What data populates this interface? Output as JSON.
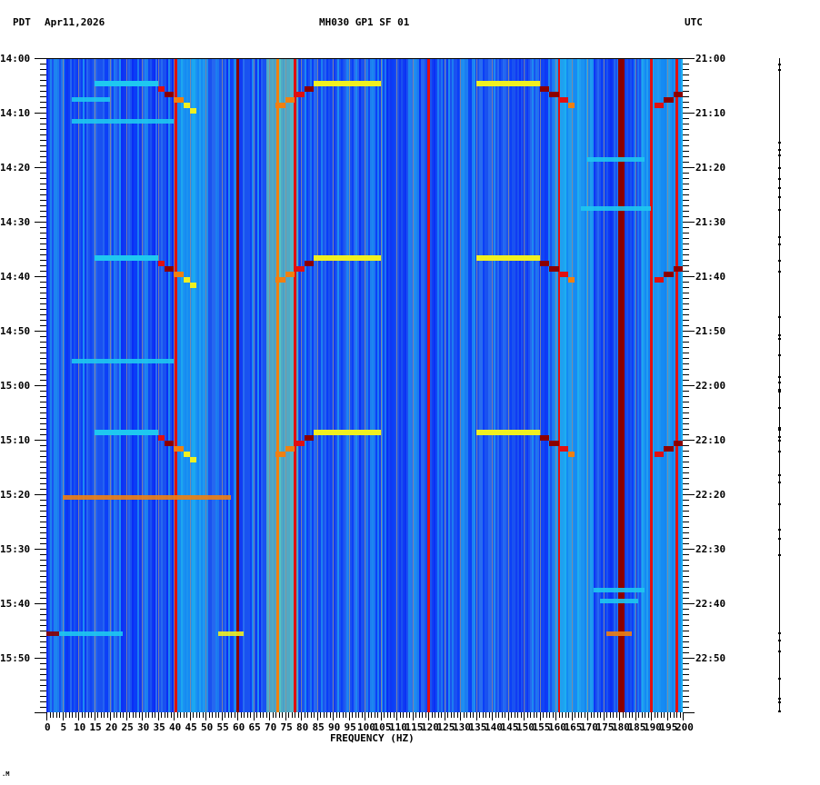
{
  "header": {
    "left_tz": "PDT",
    "date": "Apr11,2026",
    "station": "MH030 GP1 SF 01",
    "right_tz": "UTC"
  },
  "colors": {
    "background": "#1a52f0",
    "dark_blue": "#0a2cf5",
    "cyan": "#1ec8f0",
    "light_green": "#80f0a0",
    "yellow": "#f0f020",
    "orange": "#f08010",
    "red": "#e01010",
    "dark_red": "#8c0000",
    "grid": "#8a8a9a"
  },
  "footer_mark": ".M",
  "chart_data": {
    "type": "heatmap",
    "title": "MH030 GP1 SF 01",
    "xlabel": "FREQUENCY (HZ)",
    "ylabel_left": "PDT",
    "ylabel_right": "UTC",
    "xlim": [
      0,
      200
    ],
    "x_tick_step": 5,
    "x_ticks": [
      0,
      5,
      10,
      15,
      20,
      25,
      30,
      35,
      40,
      45,
      50,
      55,
      60,
      65,
      70,
      75,
      80,
      85,
      90,
      95,
      100,
      105,
      110,
      115,
      120,
      125,
      130,
      135,
      140,
      145,
      150,
      155,
      160,
      165,
      170,
      175,
      180,
      185,
      190,
      195,
      200
    ],
    "y_range_minutes": [
      0,
      120
    ],
    "y_minor_tick_minutes": 1,
    "y_labels_left": [
      "14:00",
      "14:10",
      "14:20",
      "14:30",
      "14:40",
      "14:50",
      "15:00",
      "15:10",
      "15:20",
      "15:30",
      "15:40",
      "15:50"
    ],
    "y_labels_right": [
      "21:00",
      "21:10",
      "21:20",
      "21:30",
      "21:40",
      "21:50",
      "22:00",
      "22:10",
      "22:20",
      "22:30",
      "22:40",
      "22:50"
    ],
    "colormap": "jet (blue = low, dark red = high)",
    "grid": "vertical lines every 5 Hz",
    "persistent_lines_hz": [
      {
        "hz": 60,
        "level": "dark_red"
      },
      {
        "hz": 180,
        "level": "dark_red",
        "width_hz": 2
      },
      {
        "hz": 40.5,
        "level": "red"
      },
      {
        "hz": 72.5,
        "level": "orange"
      },
      {
        "hz": 78,
        "level": "red"
      },
      {
        "hz": 120,
        "level": "red"
      },
      {
        "hz": 161,
        "level": "red"
      },
      {
        "hz": 190,
        "level": "red"
      },
      {
        "hz": 198,
        "level": "red"
      }
    ],
    "broadband_bands_hz": [
      {
        "from": 41,
        "to": 50,
        "level": "cyan"
      },
      {
        "from": 69,
        "to": 79,
        "level": "light_green"
      },
      {
        "from": 160,
        "to": 172,
        "level": "cyan"
      },
      {
        "from": 187,
        "to": 200,
        "level": "cyan"
      }
    ],
    "events": [
      {
        "type": "glide",
        "start_min": 4,
        "repeats_min": [
          4,
          36,
          68
        ],
        "segments": [
          {
            "from": 15,
            "to": 35,
            "dmin": 0,
            "level": "cyan"
          },
          {
            "from": 35,
            "to": 37,
            "dmin": 1,
            "level": "red"
          },
          {
            "from": 37,
            "to": 40,
            "dmin": 2,
            "level": "dark_red"
          },
          {
            "from": 40,
            "to": 43,
            "dmin": 3,
            "level": "orange"
          },
          {
            "from": 43,
            "to": 45,
            "dmin": 4,
            "level": "yellow"
          },
          {
            "from": 45,
            "to": 47,
            "dmin": 5,
            "level": "yellow"
          },
          {
            "from": 84,
            "to": 105,
            "dmin": 0,
            "level": "yellow"
          },
          {
            "from": 81,
            "to": 84,
            "dmin": 1,
            "level": "dark_red"
          },
          {
            "from": 78,
            "to": 81,
            "dmin": 2,
            "level": "red"
          },
          {
            "from": 75,
            "to": 78,
            "dmin": 3,
            "level": "orange"
          },
          {
            "from": 72,
            "to": 75,
            "dmin": 4,
            "level": "orange"
          },
          {
            "from": 135,
            "to": 155,
            "dmin": 0,
            "level": "yellow"
          },
          {
            "from": 155,
            "to": 158,
            "dmin": 1,
            "level": "dark_red"
          },
          {
            "from": 158,
            "to": 161,
            "dmin": 2,
            "level": "dark_red"
          },
          {
            "from": 161,
            "to": 164,
            "dmin": 3,
            "level": "red"
          },
          {
            "from": 164,
            "to": 166,
            "dmin": 4,
            "level": "orange"
          },
          {
            "from": 197,
            "to": 200,
            "dmin": 2,
            "level": "dark_red"
          },
          {
            "from": 194,
            "to": 197,
            "dmin": 3,
            "level": "dark_red"
          },
          {
            "from": 191,
            "to": 194,
            "dmin": 4,
            "level": "red"
          }
        ]
      },
      {
        "type": "line",
        "minute": 11,
        "from": 8,
        "to": 40,
        "level": "cyan"
      },
      {
        "type": "line",
        "minute": 7,
        "from": 8,
        "to": 20,
        "level": "cyan"
      },
      {
        "type": "line",
        "minute": 18,
        "from": 170,
        "to": 188,
        "level": "cyan"
      },
      {
        "type": "line",
        "minute": 27,
        "from": 168,
        "to": 190,
        "level": "cyan"
      },
      {
        "type": "line",
        "minute": 55,
        "from": 8,
        "to": 40,
        "level": "cyan"
      },
      {
        "type": "line",
        "minute": 80,
        "from": 5,
        "to": 58,
        "level": "orange"
      },
      {
        "type": "line",
        "minute": 97,
        "from": 172,
        "to": 188,
        "level": "cyan"
      },
      {
        "type": "line",
        "minute": 99,
        "from": 174,
        "to": 186,
        "level": "cyan"
      },
      {
        "type": "line",
        "minute": 105,
        "from": 0,
        "to": 4,
        "level": "dark_red"
      },
      {
        "type": "line",
        "minute": 105,
        "from": 4,
        "to": 24,
        "level": "cyan"
      },
      {
        "type": "line",
        "minute": 105,
        "from": 54,
        "to": 62,
        "level": "yellow"
      },
      {
        "type": "line",
        "minute": 105,
        "from": 176,
        "to": 184,
        "level": "orange"
      }
    ]
  }
}
